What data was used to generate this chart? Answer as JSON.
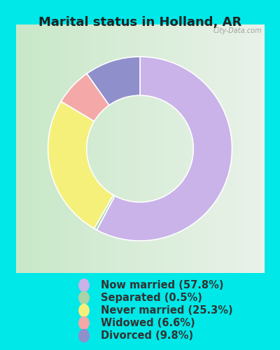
{
  "title": "Marital status in Holland, AR",
  "slices": [
    57.8,
    0.5,
    25.3,
    6.6,
    9.8
  ],
  "labels": [
    "Now married (57.8%)",
    "Separated (0.5%)",
    "Never married (25.3%)",
    "Widowed (6.6%)",
    "Divorced (9.8%)"
  ],
  "colors": [
    "#c9b3e8",
    "#aad4a8",
    "#f5f07a",
    "#f4a8a8",
    "#8f8fcc"
  ],
  "bg_color": "#00e8e8",
  "chart_bg_left": "#c8e8c8",
  "chart_bg_right": "#e8f0e8",
  "title_color": "#222222",
  "title_fontsize": 13,
  "legend_fontsize": 10.5,
  "watermark": "City-Data.com"
}
